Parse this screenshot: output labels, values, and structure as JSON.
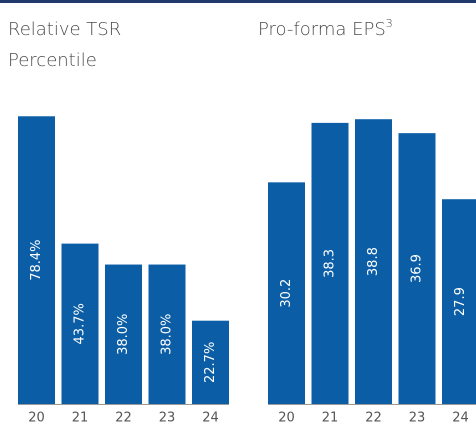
{
  "chart_data": [
    {
      "type": "bar",
      "title": [
        "Relative TSR",
        "Percentile"
      ],
      "categories": [
        "20",
        "21",
        "22",
        "23",
        "24"
      ],
      "values": [
        78.4,
        43.7,
        38.0,
        38.0,
        22.7
      ],
      "value_labels": [
        "78.4%",
        "43.7%",
        "38.0%",
        "38.0%",
        "22.7%"
      ],
      "color": "#0b5ea6",
      "ylim": [
        0,
        100
      ]
    },
    {
      "type": "bar",
      "title": [
        "Pro-forma EPS"
      ],
      "title_superscript": "3",
      "categories": [
        "20",
        "21",
        "22",
        "23",
        "24"
      ],
      "values": [
        30.2,
        38.3,
        38.8,
        36.9,
        27.9
      ],
      "value_labels": [
        "30.2",
        "38.3",
        "38.8",
        "36.9",
        "27.9"
      ],
      "color": "#0b5ea6",
      "ylim": [
        0,
        50
      ]
    }
  ]
}
